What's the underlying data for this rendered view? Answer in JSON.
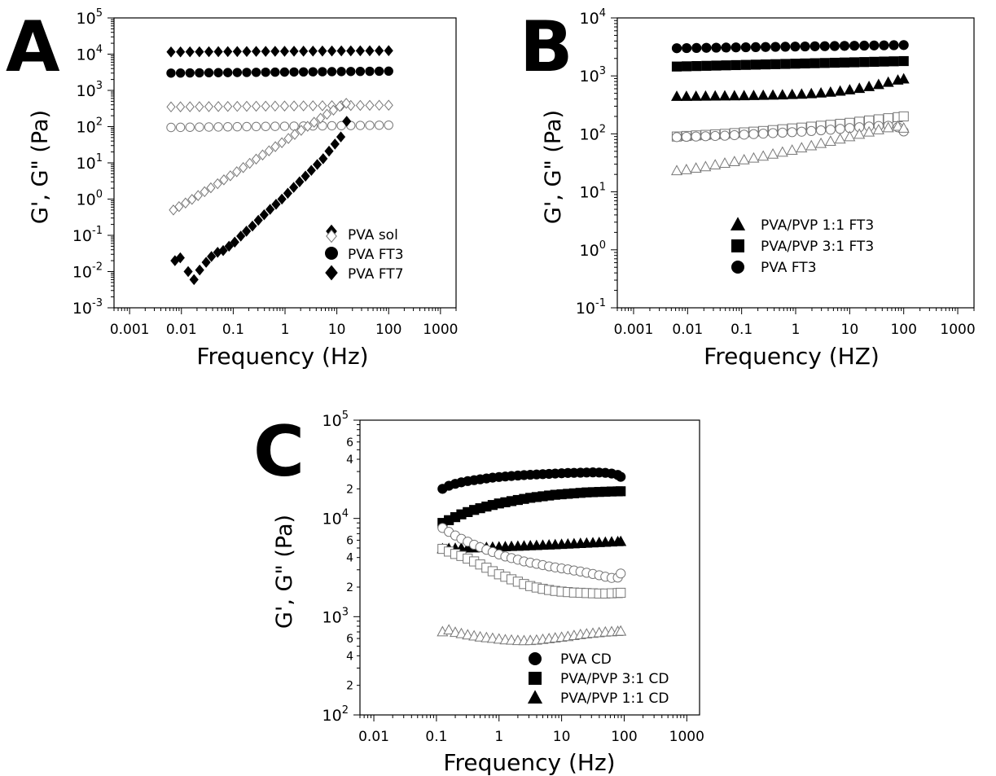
{
  "panels": [
    {
      "letter": "A",
      "xlabel": "Frequency (Hz)",
      "ylabel": "G', G\" (Pa)",
      "legend": [
        "PVA sol",
        "PVA FT3",
        "PVA FT7"
      ]
    },
    {
      "letter": "B",
      "xlabel": "Frequency (HZ)",
      "ylabel": "G', G\" (Pa)",
      "legend": [
        "PVA/PVP 1:1 FT3",
        "PVA/PVP 3:1 FT3",
        "PVA FT3"
      ]
    },
    {
      "letter": "C",
      "xlabel": "Frequency (Hz)",
      "ylabel": "G', G\" (Pa)",
      "legend": [
        "PVA CD",
        "PVA/PVP 3:1 CD",
        "PVA/PVP 1:1 CD"
      ]
    }
  ],
  "chart_data": [
    {
      "id": "A",
      "type": "scatter",
      "xscale": "log",
      "yscale": "log",
      "xlim": [
        0.0005,
        2000
      ],
      "ylim": [
        0.001,
        100000
      ],
      "xticks": [
        "0.001",
        "0.01",
        "0.1",
        "1",
        "10",
        "100",
        "1000"
      ],
      "yticks_exp": [
        "-3",
        "-2",
        "-1",
        "0",
        "1",
        "2",
        "3",
        "4",
        "5"
      ],
      "xlabel": "Frequency (Hz)",
      "ylabel": "G', G\" (Pa)",
      "legend_position": "lower-right",
      "series": [
        {
          "name": "PVA FT7",
          "marker": "diamond",
          "fill": "filled",
          "modulus": "G'",
          "xrange": [
            0.0063,
            100
          ],
          "n": 24,
          "y_start": 11500,
          "y_end": 12500
        },
        {
          "name": "PVA FT3",
          "marker": "circle",
          "fill": "filled",
          "modulus": "G'",
          "xrange": [
            0.0063,
            100
          ],
          "n": 24,
          "y_start": 3000,
          "y_end": 3400
        },
        {
          "name": "PVA FT7",
          "marker": "diamond",
          "fill": "open",
          "modulus": "G\"",
          "xrange": [
            0.0063,
            100
          ],
          "n": 24,
          "y_start": 350,
          "y_end": 390
        },
        {
          "name": "PVA FT3",
          "marker": "circle",
          "fill": "open",
          "modulus": "G\"",
          "xrange": [
            0.0063,
            100
          ],
          "n": 24,
          "y_start": 95,
          "y_end": 110
        },
        {
          "name": "PVA sol",
          "marker": "diamond",
          "fill": "open",
          "modulus": "G\"",
          "x": [
            0.007,
            0.009,
            0.012,
            0.016,
            0.021,
            0.028,
            0.037,
            0.05,
            0.066,
            0.088,
            0.117,
            0.156,
            0.208,
            0.277,
            0.369,
            0.49,
            0.65,
            0.87,
            1.16,
            1.54,
            2.05,
            2.73,
            3.64,
            4.85,
            6.45,
            8.6,
            11.4,
            15.2
          ],
          "y": [
            0.5,
            0.62,
            0.78,
            0.98,
            1.25,
            1.6,
            2.05,
            2.65,
            3.4,
            4.4,
            5.7,
            7.4,
            9.7,
            12.7,
            16.5,
            21.5,
            28,
            36,
            47,
            61,
            79,
            102,
            132,
            170,
            220,
            285,
            360,
            440
          ]
        },
        {
          "name": "PVA sol",
          "marker": "diamond",
          "fill": "filled",
          "modulus": "G'",
          "x": [
            0.0075,
            0.0095,
            0.0135,
            0.0175,
            0.0225,
            0.03,
            0.038,
            0.05,
            0.064,
            0.083,
            0.107,
            0.14,
            0.18,
            0.235,
            0.305,
            0.395,
            0.515,
            0.67,
            0.87,
            1.13,
            1.47,
            1.91,
            2.48,
            3.22,
            4.19,
            5.44,
            7.07,
            9.2,
            11.95,
            15.5
          ],
          "y": [
            0.02,
            0.024,
            0.01,
            0.006,
            0.011,
            0.018,
            0.026,
            0.034,
            0.038,
            0.05,
            0.065,
            0.095,
            0.13,
            0.18,
            0.26,
            0.37,
            0.52,
            0.72,
            1.0,
            1.45,
            2.1,
            3.0,
            4.3,
            6.2,
            9.0,
            13,
            21,
            33,
            52,
            140
          ]
        }
      ]
    },
    {
      "id": "B",
      "type": "scatter",
      "xscale": "log",
      "yscale": "log",
      "xlim": [
        0.0005,
        2000
      ],
      "ylim": [
        0.1,
        10000
      ],
      "xticks": [
        "0.001",
        "0.01",
        "0.1",
        "1",
        "10",
        "100",
        "1000"
      ],
      "yticks_exp": [
        "-1",
        "0",
        "1",
        "2",
        "3",
        "4"
      ],
      "xlabel": "Frequency (HZ)",
      "ylabel": "G', G\" (Pa)",
      "legend_position": "lower-right",
      "series": [
        {
          "name": "PVA FT3",
          "marker": "circle",
          "fill": "filled",
          "modulus": "G'",
          "xrange": [
            0.0063,
            100
          ],
          "n": 24,
          "y_start": 3000,
          "y_end": 3400
        },
        {
          "name": "PVA/PVP 3:1 FT3",
          "marker": "square",
          "fill": "filled",
          "modulus": "G'",
          "xrange": [
            0.0063,
            100
          ],
          "n": 24,
          "y_start": 1450,
          "y_end": 1800
        },
        {
          "name": "PVA/PVP 1:1 FT3",
          "marker": "triangle",
          "fill": "filled",
          "modulus": "G'",
          "x": [
            0.0063,
            0.0095,
            0.0143,
            0.0215,
            0.0324,
            0.0488,
            0.0736,
            0.111,
            0.167,
            0.251,
            0.379,
            0.57,
            0.86,
            1.29,
            1.95,
            2.94,
            4.42,
            6.66,
            10.0,
            15.1,
            22.8,
            34.3,
            51.7,
            77.9,
            100
          ],
          "y": [
            440,
            440,
            442,
            444,
            446,
            448,
            450,
            452,
            455,
            458,
            462,
            467,
            473,
            480,
            490,
            503,
            520,
            542,
            570,
            605,
            650,
            705,
            770,
            840,
            880
          ]
        },
        {
          "name": "PVA/PVP 3:1 FT3",
          "marker": "square",
          "fill": "open",
          "modulus": "G\"",
          "x": [
            0.0063,
            0.0095,
            0.0143,
            0.0215,
            0.0324,
            0.0488,
            0.0736,
            0.111,
            0.167,
            0.251,
            0.379,
            0.57,
            0.86,
            1.29,
            1.95,
            2.94,
            4.42,
            6.66,
            10.0,
            15.1,
            22.8,
            34.3,
            51.7,
            77.9,
            100
          ],
          "y": [
            90,
            92,
            94,
            96,
            98,
            100,
            103,
            106,
            109,
            112,
            116,
            120,
            124,
            128,
            133,
            138,
            143,
            149,
            155,
            162,
            170,
            178,
            186,
            194,
            200
          ]
        },
        {
          "name": "PVA FT3",
          "marker": "circle",
          "fill": "open",
          "modulus": "G\"",
          "x": [
            0.0063,
            0.0095,
            0.0143,
            0.0215,
            0.0324,
            0.0488,
            0.0736,
            0.111,
            0.167,
            0.251,
            0.379,
            0.57,
            0.86,
            1.29,
            1.95,
            2.94,
            4.42,
            6.66,
            10.0,
            15.1,
            22.8,
            34.3,
            51.7,
            77.9,
            100
          ],
          "y": [
            88,
            89,
            90,
            91,
            92,
            93,
            95,
            97,
            99,
            101,
            103,
            105,
            107,
            109,
            112,
            115,
            118,
            122,
            126,
            130,
            134,
            137,
            138,
            130,
            110
          ]
        },
        {
          "name": "PVA/PVP 1:1 FT3",
          "marker": "triangle",
          "fill": "open",
          "modulus": "G\"",
          "x": [
            0.0063,
            0.0095,
            0.0143,
            0.0215,
            0.0324,
            0.0488,
            0.0736,
            0.111,
            0.167,
            0.251,
            0.379,
            0.57,
            0.86,
            1.29,
            1.95,
            2.94,
            4.42,
            6.66,
            10.0,
            15.1,
            22.8,
            34.3,
            51.7,
            77.9,
            100
          ],
          "y": [
            23,
            24,
            25.5,
            27,
            29,
            31,
            33,
            35.5,
            38,
            41,
            44.5,
            48,
            52,
            57,
            62,
            68,
            74,
            81,
            89,
            98,
            107,
            117,
            127,
            135,
            125
          ]
        }
      ]
    },
    {
      "id": "C",
      "type": "scatter",
      "xscale": "log",
      "yscale": "log",
      "xlim": [
        0.006,
        1600
      ],
      "ylim": [
        100,
        100000
      ],
      "xticks": [
        "0.01",
        "0.1",
        "1",
        "10",
        "100",
        "1000"
      ],
      "yticks_exp": [
        "2",
        "3",
        "4",
        "5"
      ],
      "yminor_labels": [
        "2",
        "4",
        "6"
      ],
      "xlabel": "Frequency (Hz)",
      "ylabel": "G', G\" (Pa)",
      "legend_position": "lower-right",
      "series": [
        {
          "name": "PVA CD",
          "marker": "circle",
          "fill": "filled",
          "modulus": "G'",
          "x": [
            0.125,
            0.158,
            0.2,
            0.25,
            0.316,
            0.4,
            0.5,
            0.63,
            0.79,
            1.0,
            1.26,
            1.58,
            2.0,
            2.51,
            3.16,
            3.98,
            5.0,
            6.3,
            7.9,
            10,
            12.6,
            15.8,
            20,
            25.1,
            31.6,
            39.8,
            50,
            63,
            79,
            88
          ],
          "y": [
            20000,
            21500,
            22500,
            23300,
            24000,
            24500,
            25000,
            25500,
            26000,
            26400,
            26700,
            27000,
            27300,
            27600,
            27800,
            28000,
            28200,
            28400,
            28600,
            28800,
            29000,
            29100,
            29200,
            29300,
            29400,
            29300,
            29100,
            28600,
            27700,
            26500
          ]
        },
        {
          "name": "PVA/PVP 3:1 CD",
          "marker": "square",
          "fill": "filled",
          "modulus": "G'",
          "x": [
            0.125,
            0.158,
            0.2,
            0.25,
            0.316,
            0.4,
            0.5,
            0.63,
            0.79,
            1.0,
            1.26,
            1.58,
            2.0,
            2.51,
            3.16,
            3.98,
            5.0,
            6.3,
            7.9,
            10,
            12.6,
            15.8,
            20,
            25.1,
            31.6,
            39.8,
            50,
            63,
            79,
            88
          ],
          "y": [
            9000,
            9600,
            10300,
            11000,
            11600,
            12200,
            12700,
            13200,
            13700,
            14200,
            14600,
            15000,
            15400,
            15800,
            16200,
            16500,
            16800,
            17100,
            17400,
            17600,
            17800,
            18000,
            18200,
            18400,
            18500,
            18600,
            18700,
            18800,
            18850,
            18900
          ]
        },
        {
          "name": "PVA/PVP 1:1 CD",
          "marker": "triangle",
          "fill": "filled",
          "modulus": "G'",
          "x": [
            0.125,
            0.158,
            0.2,
            0.25,
            0.316,
            0.4,
            0.5,
            0.63,
            0.79,
            1.0,
            1.26,
            1.58,
            2.0,
            2.51,
            3.16,
            3.98,
            5.0,
            6.3,
            7.9,
            10,
            12.6,
            15.8,
            20,
            25.1,
            31.6,
            39.8,
            50,
            63,
            79,
            88
          ],
          "y": [
            4900,
            4920,
            4940,
            4960,
            4980,
            5000,
            5020,
            5040,
            5070,
            5100,
            5130,
            5160,
            5190,
            5220,
            5250,
            5280,
            5310,
            5340,
            5380,
            5420,
            5460,
            5500,
            5540,
            5580,
            5620,
            5660,
            5700,
            5740,
            5780,
            5800
          ]
        },
        {
          "name": "PVA CD",
          "marker": "circle",
          "fill": "open",
          "modulus": "G\"",
          "x": [
            0.125,
            0.158,
            0.2,
            0.25,
            0.316,
            0.4,
            0.5,
            0.63,
            0.79,
            1.0,
            1.26,
            1.58,
            2.0,
            2.51,
            3.16,
            3.98,
            5.0,
            6.3,
            7.9,
            10,
            12.6,
            15.8,
            20,
            25.1,
            31.6,
            39.8,
            50,
            63,
            79,
            88
          ],
          "y": [
            8000,
            7300,
            6700,
            6200,
            5800,
            5400,
            5100,
            4800,
            4550,
            4300,
            4100,
            3950,
            3800,
            3650,
            3550,
            3450,
            3350,
            3250,
            3170,
            3100,
            3030,
            2950,
            2880,
            2800,
            2720,
            2640,
            2550,
            2480,
            2500,
            2750
          ]
        },
        {
          "name": "PVA/PVP 3:1 CD",
          "marker": "square",
          "fill": "open",
          "modulus": "G\"",
          "x": [
            0.125,
            0.158,
            0.2,
            0.25,
            0.316,
            0.4,
            0.5,
            0.63,
            0.79,
            1.0,
            1.26,
            1.58,
            2.0,
            2.51,
            3.16,
            3.98,
            5.0,
            6.3,
            7.9,
            10,
            12.6,
            15.8,
            20,
            25.1,
            31.6,
            39.8,
            50,
            63,
            79,
            88
          ],
          "y": [
            4900,
            4600,
            4350,
            4150,
            3900,
            3650,
            3400,
            3150,
            2900,
            2700,
            2550,
            2400,
            2270,
            2150,
            2050,
            1980,
            1920,
            1870,
            1830,
            1800,
            1780,
            1760,
            1750,
            1740,
            1730,
            1720,
            1720,
            1730,
            1740,
            1750
          ]
        },
        {
          "name": "PVA/PVP 1:1 CD",
          "marker": "triangle",
          "fill": "open",
          "modulus": "G\"",
          "x": [
            0.125,
            0.158,
            0.2,
            0.25,
            0.316,
            0.4,
            0.5,
            0.63,
            0.79,
            1.0,
            1.26,
            1.58,
            2.0,
            2.51,
            3.16,
            3.98,
            5.0,
            6.3,
            7.9,
            10,
            12.6,
            15.8,
            20,
            25.1,
            31.6,
            39.8,
            50,
            63,
            79,
            88
          ],
          "y": [
            700,
            730,
            690,
            670,
            650,
            635,
            620,
            610,
            600,
            590,
            580,
            575,
            570,
            568,
            570,
            575,
            585,
            595,
            605,
            615,
            625,
            640,
            655,
            665,
            675,
            685,
            695,
            700,
            705,
            710
          ]
        }
      ]
    }
  ]
}
